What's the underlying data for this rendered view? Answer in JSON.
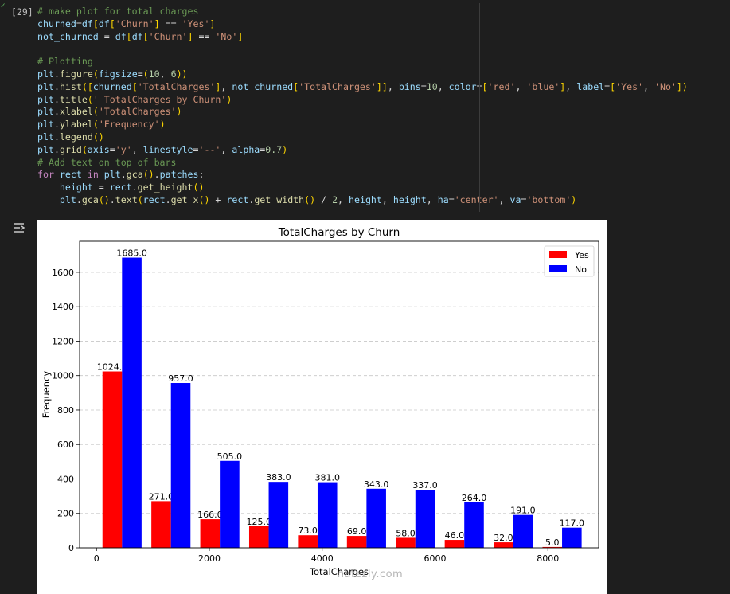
{
  "cell": {
    "execution_count": "[29]",
    "code_lines": [
      [
        [
          "c-com",
          "# make plot for total charges"
        ]
      ],
      [
        [
          "c-var",
          "churned"
        ],
        [
          "",
          "="
        ],
        [
          "c-var",
          "df"
        ],
        [
          "c-par",
          "["
        ],
        [
          "c-var",
          "df"
        ],
        [
          "c-par",
          "["
        ],
        [
          "c-str",
          "'Churn'"
        ],
        [
          "c-par",
          "]"
        ],
        [
          "",
          " == "
        ],
        [
          "c-str",
          "'Yes'"
        ],
        [
          "c-par",
          "]"
        ]
      ],
      [
        [
          "c-var",
          "not_churned"
        ],
        [
          "",
          " = "
        ],
        [
          "c-var",
          "df"
        ],
        [
          "c-par",
          "["
        ],
        [
          "c-var",
          "df"
        ],
        [
          "c-par",
          "["
        ],
        [
          "c-str",
          "'Churn'"
        ],
        [
          "c-par",
          "]"
        ],
        [
          "",
          " == "
        ],
        [
          "c-str",
          "'No'"
        ],
        [
          "c-par",
          "]"
        ]
      ],
      [],
      [
        [
          "c-com",
          "# Plotting"
        ]
      ],
      [
        [
          "c-var",
          "plt"
        ],
        [
          "",
          "."
        ],
        [
          "c-fn",
          "figure"
        ],
        [
          "c-par",
          "("
        ],
        [
          "c-var",
          "figsize"
        ],
        [
          "",
          "="
        ],
        [
          "c-par",
          "("
        ],
        [
          "c-num",
          "10"
        ],
        [
          "",
          ", "
        ],
        [
          "c-num",
          "6"
        ],
        [
          "c-par",
          "))"
        ]
      ],
      [
        [
          "c-var",
          "plt"
        ],
        [
          "",
          "."
        ],
        [
          "c-fn",
          "hist"
        ],
        [
          "c-par",
          "(["
        ],
        [
          "c-var",
          "churned"
        ],
        [
          "c-par",
          "["
        ],
        [
          "c-str",
          "'TotalCharges'"
        ],
        [
          "c-par",
          "]"
        ],
        [
          "",
          ", "
        ],
        [
          "c-var",
          "not_churned"
        ],
        [
          "c-par",
          "["
        ],
        [
          "c-str",
          "'TotalCharges'"
        ],
        [
          "c-par",
          "]]"
        ],
        [
          "",
          ", "
        ],
        [
          "c-var",
          "bins"
        ],
        [
          "",
          "="
        ],
        [
          "c-num",
          "10"
        ],
        [
          "",
          ", "
        ],
        [
          "c-var",
          "color"
        ],
        [
          "",
          "="
        ],
        [
          "c-par",
          "["
        ],
        [
          "c-str",
          "'red'"
        ],
        [
          "",
          ", "
        ],
        [
          "c-str",
          "'blue'"
        ],
        [
          "c-par",
          "]"
        ],
        [
          "",
          ", "
        ],
        [
          "c-var",
          "label"
        ],
        [
          "",
          "="
        ],
        [
          "c-par",
          "["
        ],
        [
          "c-str",
          "'Yes'"
        ],
        [
          "",
          ", "
        ],
        [
          "c-str",
          "'No'"
        ],
        [
          "c-par",
          "])"
        ]
      ],
      [
        [
          "c-var",
          "plt"
        ],
        [
          "",
          "."
        ],
        [
          "c-fn",
          "title"
        ],
        [
          "c-par",
          "("
        ],
        [
          "c-str",
          "' TotalCharges by Churn'"
        ],
        [
          "c-par",
          ")"
        ]
      ],
      [
        [
          "c-var",
          "plt"
        ],
        [
          "",
          "."
        ],
        [
          "c-fn",
          "xlabel"
        ],
        [
          "c-par",
          "("
        ],
        [
          "c-str",
          "'TotalCharges'"
        ],
        [
          "c-par",
          ")"
        ]
      ],
      [
        [
          "c-var",
          "plt"
        ],
        [
          "",
          "."
        ],
        [
          "c-fn",
          "ylabel"
        ],
        [
          "c-par",
          "("
        ],
        [
          "c-str",
          "'Frequency'"
        ],
        [
          "c-par",
          ")"
        ]
      ],
      [
        [
          "c-var",
          "plt"
        ],
        [
          "",
          "."
        ],
        [
          "c-fn",
          "legend"
        ],
        [
          "c-par",
          "()"
        ]
      ],
      [
        [
          "c-var",
          "plt"
        ],
        [
          "",
          "."
        ],
        [
          "c-fn",
          "grid"
        ],
        [
          "c-par",
          "("
        ],
        [
          "c-var",
          "axis"
        ],
        [
          "",
          "="
        ],
        [
          "c-str",
          "'y'"
        ],
        [
          "",
          ", "
        ],
        [
          "c-var",
          "linestyle"
        ],
        [
          "",
          "="
        ],
        [
          "c-str",
          "'--'"
        ],
        [
          "",
          ", "
        ],
        [
          "c-var",
          "alpha"
        ],
        [
          "",
          "="
        ],
        [
          "c-num",
          "0.7"
        ],
        [
          "c-par",
          ")"
        ]
      ],
      [
        [
          "c-com",
          "# Add text on top of bars"
        ]
      ],
      [
        [
          "c-kw",
          "for"
        ],
        [
          "",
          " "
        ],
        [
          "c-var",
          "rect"
        ],
        [
          "",
          " "
        ],
        [
          "c-kw",
          "in"
        ],
        [
          "",
          " "
        ],
        [
          "c-var",
          "plt"
        ],
        [
          "",
          "."
        ],
        [
          "c-fn",
          "gca"
        ],
        [
          "c-par",
          "()"
        ],
        [
          "",
          "."
        ],
        [
          "c-var",
          "patches"
        ],
        [
          "",
          ":"
        ]
      ],
      [
        [
          "",
          "    "
        ],
        [
          "c-var",
          "height"
        ],
        [
          "",
          " = "
        ],
        [
          "c-var",
          "rect"
        ],
        [
          "",
          "."
        ],
        [
          "c-fn",
          "get_height"
        ],
        [
          "c-par",
          "()"
        ]
      ],
      [
        [
          "",
          "    "
        ],
        [
          "c-var",
          "plt"
        ],
        [
          "",
          "."
        ],
        [
          "c-fn",
          "gca"
        ],
        [
          "c-par",
          "()"
        ],
        [
          "",
          "."
        ],
        [
          "c-fn",
          "text"
        ],
        [
          "c-par",
          "("
        ],
        [
          "c-var",
          "rect"
        ],
        [
          "",
          "."
        ],
        [
          "c-fn",
          "get_x"
        ],
        [
          "c-par",
          "()"
        ],
        [
          "",
          " + "
        ],
        [
          "c-var",
          "rect"
        ],
        [
          "",
          "."
        ],
        [
          "c-fn",
          "get_width"
        ],
        [
          "c-par",
          "()"
        ],
        [
          "",
          " / "
        ],
        [
          "c-num",
          "2"
        ],
        [
          "",
          ", "
        ],
        [
          "c-var",
          "height"
        ],
        [
          "",
          ", "
        ],
        [
          "c-var",
          "height"
        ],
        [
          "",
          ", "
        ],
        [
          "c-var",
          "ha"
        ],
        [
          "",
          "="
        ],
        [
          "c-str",
          "'center'"
        ],
        [
          "",
          ", "
        ],
        [
          "c-var",
          "va"
        ],
        [
          "",
          "="
        ],
        [
          "c-str",
          "'bottom'"
        ],
        [
          "c-par",
          ")"
        ]
      ]
    ]
  },
  "watermark": "nafezly.com",
  "chart_data": {
    "type": "bar",
    "title": "TotalCharges by Churn",
    "xlabel": "TotalCharges",
    "ylabel": "Frequency",
    "ylim": [
      0,
      1780
    ],
    "xlim": [
      -300,
      8900
    ],
    "xticks": [
      0,
      2000,
      4000,
      6000,
      8000
    ],
    "yticks": [
      0,
      200,
      400,
      600,
      800,
      1000,
      1200,
      1400,
      1600
    ],
    "grid": "y dashed",
    "legend_position": "top-right",
    "bin_start": 18.8,
    "bin_width": 866.6,
    "series": [
      {
        "name": "Yes",
        "color": "#ff0000",
        "values": [
          1024,
          271,
          166,
          125,
          73,
          69,
          58,
          46,
          32,
          5
        ],
        "labels": [
          "1024.0",
          "271.0",
          "166.0",
          "125.0",
          "73.0",
          "69.0",
          "58.0",
          "46.0",
          "32.0",
          "5.0"
        ]
      },
      {
        "name": "No",
        "color": "#0000ff",
        "values": [
          1685,
          957,
          505,
          383,
          381,
          343,
          337,
          264,
          191,
          117
        ],
        "labels": [
          "1685.0",
          "957.0",
          "505.0",
          "383.0",
          "381.0",
          "343.0",
          "337.0",
          "264.0",
          "191.0",
          "117.0"
        ]
      }
    ]
  }
}
